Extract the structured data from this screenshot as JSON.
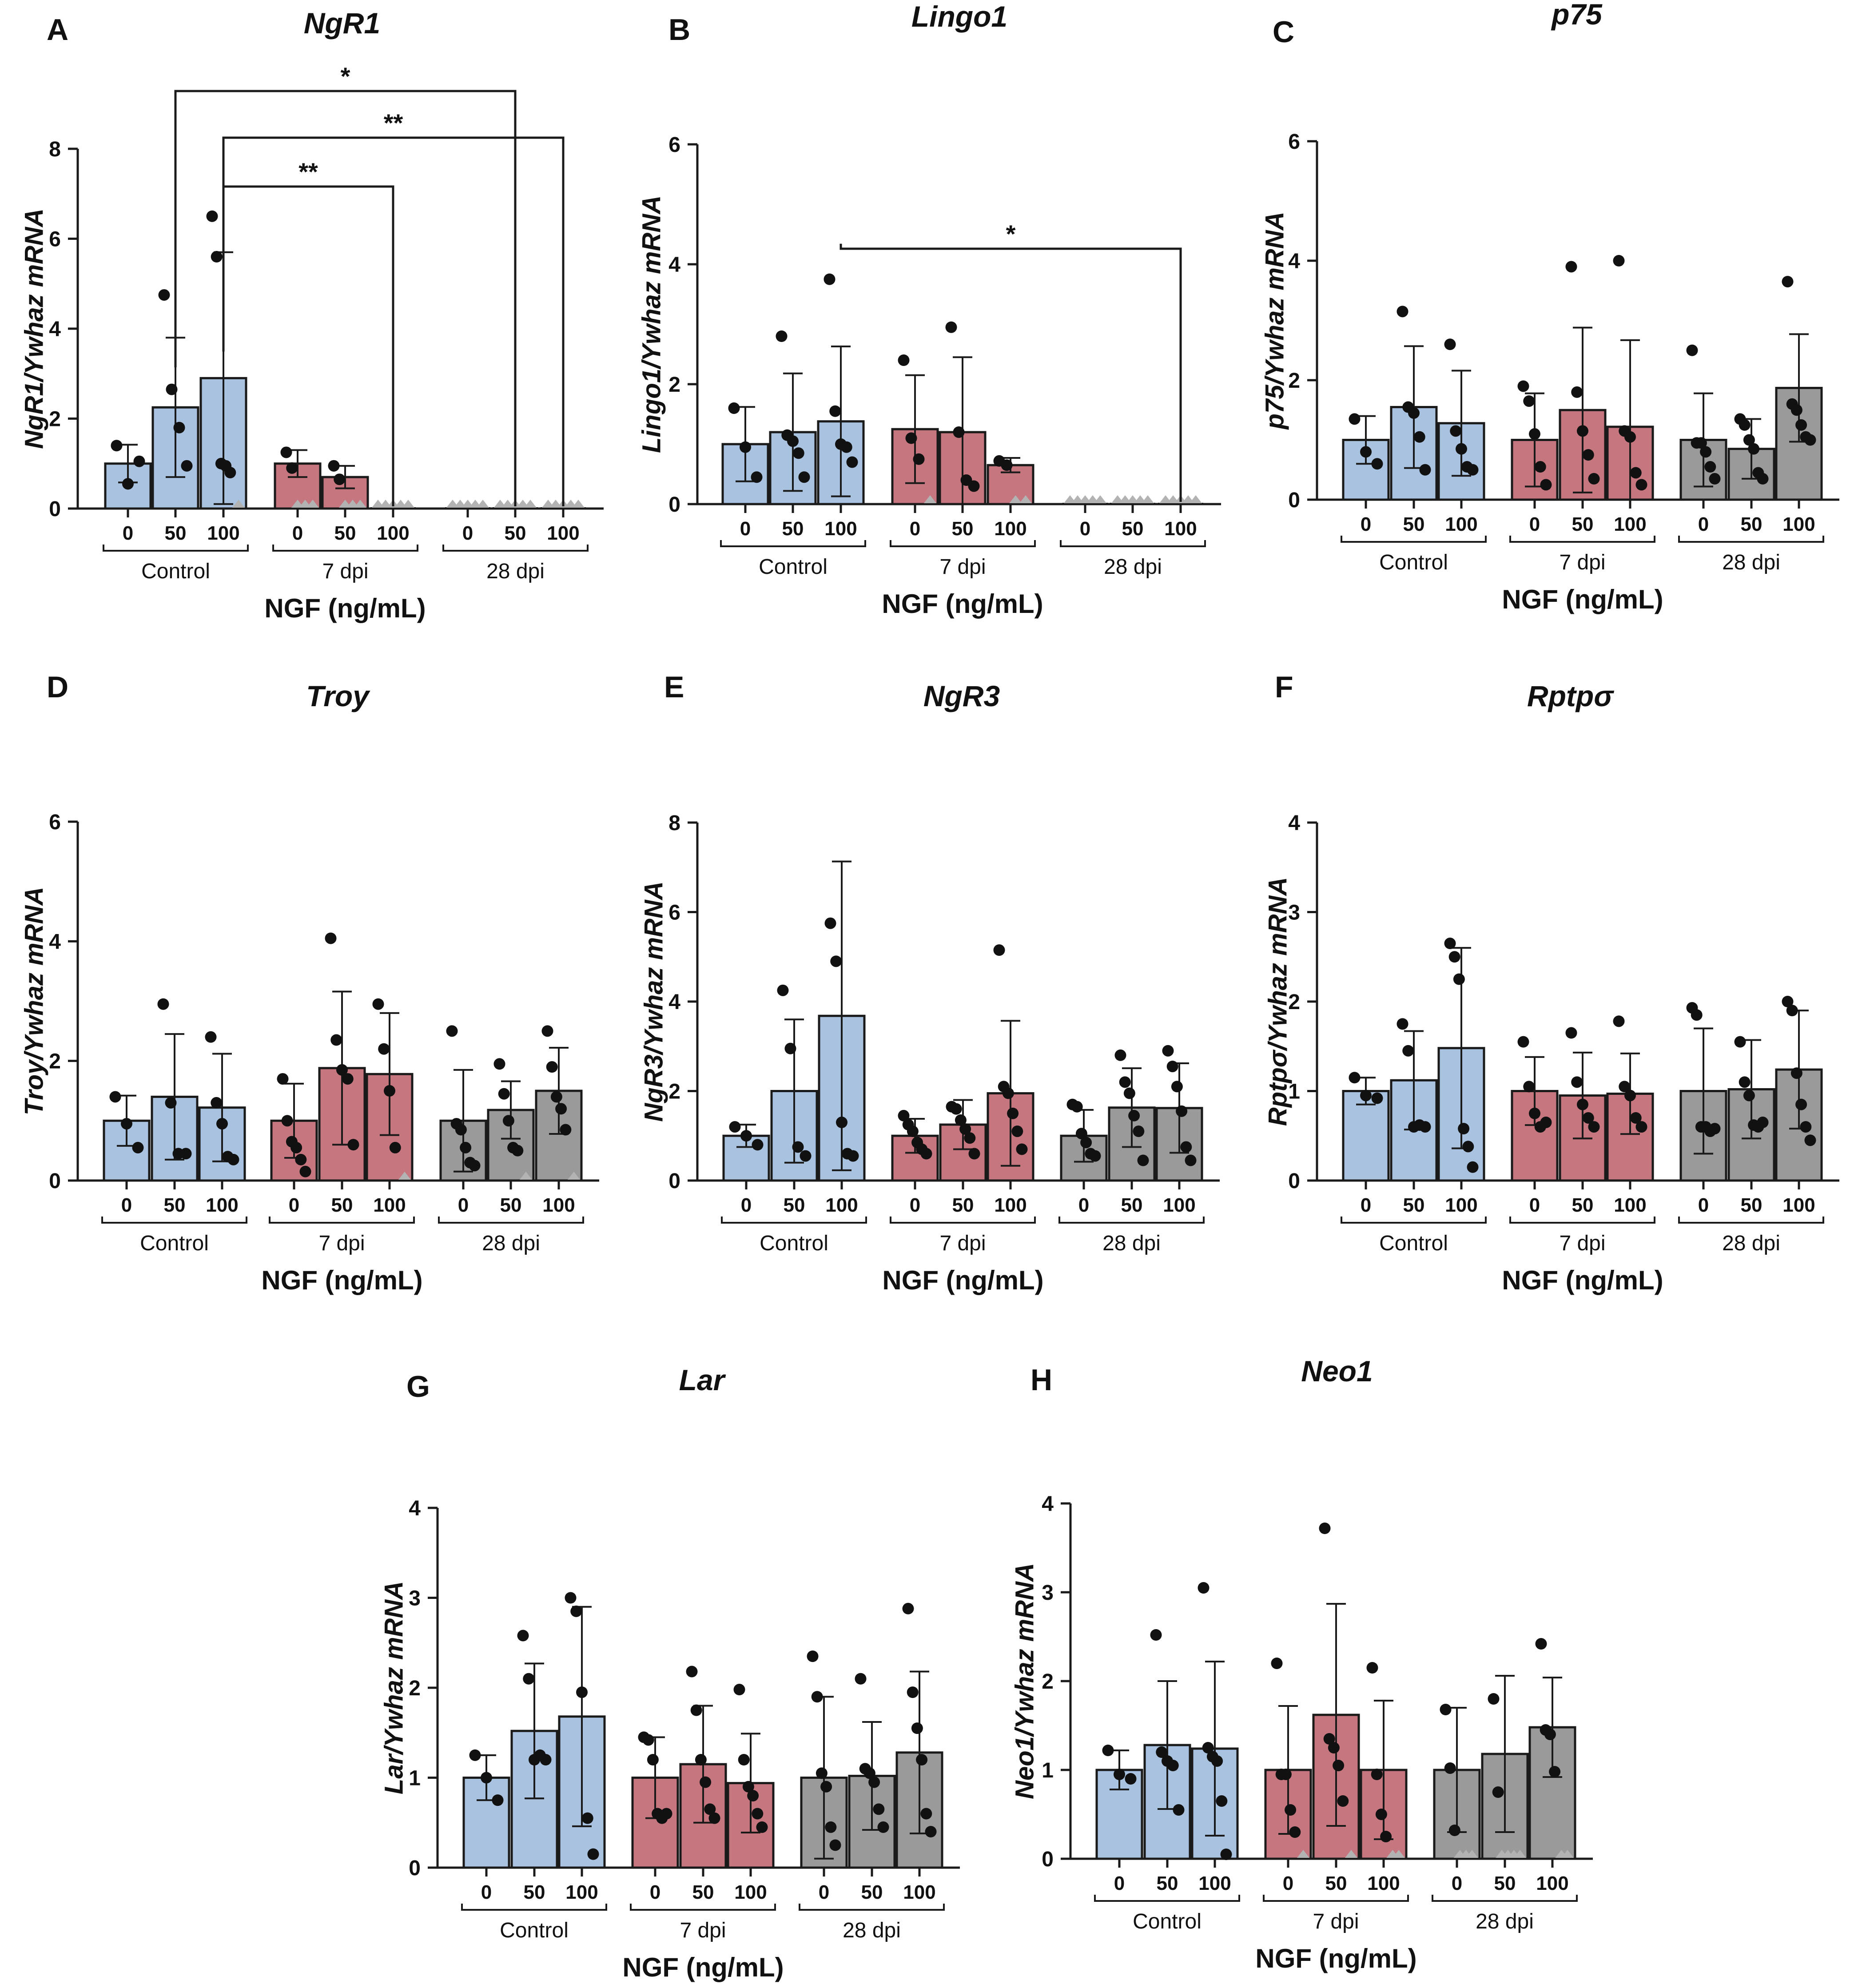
{
  "colors": {
    "Control": "#a9c2e0",
    "7 dpi": "#c6767f",
    "28 dpi": "#9a9a9a",
    "axis": "#1a1a1a",
    "point": "#111111",
    "zero_marker": "#b3b3b3"
  },
  "shared": {
    "categories": [
      "0",
      "50",
      "100"
    ],
    "groups": [
      "Control",
      "7 dpi",
      "28 dpi"
    ],
    "xlabel": "NGF (ng/mL)",
    "ylabel_suffix": "/Ywhaz mRNA"
  },
  "chart_data": [
    {
      "panel": "A",
      "gene": "NgR1",
      "type": "bar",
      "ylim": [
        0,
        8
      ],
      "yticks": [
        0,
        2,
        4,
        6,
        8
      ],
      "ylabel": "NgR1/Ywhaz mRNA",
      "xlabel": "NGF (ng/mL)",
      "series": [
        {
          "name": "Control",
          "values": [
            1.0,
            2.25,
            2.9
          ],
          "errors": [
            0.42,
            1.55,
            2.8
          ],
          "points": [
            [
              1.4,
              0.55,
              1.05
            ],
            [
              4.75,
              2.65,
              1.8,
              0.95
            ],
            [
              6.5,
              5.6,
              1.0,
              0.95,
              0.8,
              0.0
            ]
          ]
        },
        {
          "name": "7 dpi",
          "values": [
            1.0,
            0.7,
            0.0
          ],
          "errors": [
            0.3,
            0.25,
            0.0
          ],
          "points": [
            [
              1.25,
              0.9,
              0.0,
              0.0,
              0.0
            ],
            [
              0.95,
              0.65,
              0.0,
              0.0,
              0.0
            ],
            [
              0.0,
              0.0,
              0.0,
              0.0,
              0.0
            ]
          ]
        },
        {
          "name": "28 dpi",
          "values": [
            0.0,
            0.0,
            0.0
          ],
          "errors": [
            0,
            0,
            0
          ],
          "points": [
            [
              0.0,
              0.0,
              0.0,
              0.0,
              0.0
            ],
            [
              0.0,
              0.0,
              0.0,
              0.0,
              0.0
            ],
            [
              0.0,
              0.0,
              0.0,
              0.0,
              0.0
            ]
          ]
        }
      ],
      "comparisons": [
        {
          "from": [
            0,
            1
          ],
          "to": [
            2,
            1
          ],
          "label": "*",
          "level": 0
        },
        {
          "from": [
            0,
            2
          ],
          "to": [
            2,
            2
          ],
          "label": "**",
          "level": 1
        },
        {
          "from": [
            0,
            2
          ],
          "to": [
            1,
            2
          ],
          "label": "**",
          "level": 2
        }
      ]
    },
    {
      "panel": "B",
      "gene": "Lingo1",
      "type": "bar",
      "ylim": [
        0,
        6
      ],
      "yticks": [
        0,
        2,
        4,
        6
      ],
      "ylabel": "Lingo1/Ywhaz mRNA",
      "xlabel": "NGF (ng/mL)",
      "series": [
        {
          "name": "Control",
          "values": [
            1.0,
            1.2,
            1.38
          ],
          "errors": [
            0.62,
            0.98,
            1.25
          ],
          "points": [
            [
              1.6,
              0.95,
              0.45
            ],
            [
              2.8,
              1.15,
              1.05,
              0.85,
              0.45
            ],
            [
              3.75,
              1.55,
              1.0,
              0.95,
              0.7
            ]
          ]
        },
        {
          "name": "7 dpi",
          "values": [
            1.25,
            1.2,
            0.65
          ],
          "errors": [
            0.9,
            1.25,
            0.12
          ],
          "points": [
            [
              2.4,
              1.1,
              0.75,
              0.0
            ],
            [
              2.95,
              1.2,
              0.4,
              0.3
            ],
            [
              0.72,
              0.65,
              0.0,
              0.0
            ]
          ]
        },
        {
          "name": "28 dpi",
          "values": [
            0.0,
            0.0,
            0.0
          ],
          "errors": [
            0,
            0,
            0
          ],
          "points": [
            [
              0.0,
              0.0,
              0.0,
              0.0,
              0.0
            ],
            [
              0.0,
              0.0,
              0.0,
              0.0,
              0.0
            ],
            [
              0.0,
              0.0,
              0.0,
              0.0,
              0.0
            ]
          ]
        }
      ],
      "comparisons": [
        {
          "from": [
            0,
            2
          ],
          "to": [
            2,
            2
          ],
          "label": "*",
          "level": 0
        }
      ]
    },
    {
      "panel": "C",
      "gene": "p75",
      "type": "bar",
      "ylim": [
        0,
        6
      ],
      "yticks": [
        0,
        2,
        4,
        6
      ],
      "ylabel": "p75/Ywhaz mRNA",
      "xlabel": "NGF (ng/mL)",
      "series": [
        {
          "name": "Control",
          "values": [
            1.0,
            1.55,
            1.28
          ],
          "errors": [
            0.4,
            1.02,
            0.88
          ],
          "points": [
            [
              1.35,
              0.8,
              0.6
            ],
            [
              3.15,
              1.55,
              1.45,
              1.05,
              0.5
            ],
            [
              2.6,
              1.15,
              0.85,
              0.55,
              0.5
            ]
          ]
        },
        {
          "name": "7 dpi",
          "values": [
            1.0,
            1.5,
            1.22
          ],
          "errors": [
            0.78,
            1.38,
            1.45
          ],
          "points": [
            [
              1.9,
              1.65,
              1.1,
              0.55,
              0.25
            ],
            [
              3.9,
              1.8,
              1.15,
              0.75,
              0.35
            ],
            [
              4.0,
              1.15,
              1.05,
              0.45,
              0.25
            ]
          ]
        },
        {
          "name": "28 dpi",
          "values": [
            1.0,
            0.85,
            1.87
          ],
          "errors": [
            0.78,
            0.5,
            0.9
          ],
          "points": [
            [
              2.5,
              0.95,
              0.95,
              0.8,
              0.55,
              0.35
            ],
            [
              1.35,
              1.25,
              1.0,
              0.85,
              0.45,
              0.35
            ],
            [
              3.65,
              1.6,
              1.5,
              1.25,
              1.05,
              1.0
            ]
          ]
        }
      ]
    },
    {
      "panel": "D",
      "gene": "Troy",
      "type": "bar",
      "ylim": [
        0,
        6
      ],
      "yticks": [
        0,
        2,
        4,
        6
      ],
      "ylabel": "Troy/Ywhaz mRNA",
      "xlabel": "NGF (ng/mL)",
      "series": [
        {
          "name": "Control",
          "values": [
            1.0,
            1.4,
            1.22
          ],
          "errors": [
            0.42,
            1.05,
            0.9
          ],
          "points": [
            [
              1.4,
              0.95,
              0.55
            ],
            [
              2.95,
              1.3,
              0.45,
              0.45
            ],
            [
              2.4,
              1.3,
              0.95,
              0.4,
              0.35
            ]
          ]
        },
        {
          "name": "7 dpi",
          "values": [
            1.0,
            1.88,
            1.78
          ],
          "errors": [
            0.62,
            1.28,
            1.02
          ],
          "points": [
            [
              1.7,
              1.0,
              0.65,
              0.55,
              0.35,
              0.15
            ],
            [
              4.05,
              2.35,
              1.85,
              1.7,
              0.6
            ],
            [
              2.95,
              2.2,
              1.5,
              0.55,
              0.0
            ]
          ]
        },
        {
          "name": "28 dpi",
          "values": [
            1.0,
            1.18,
            1.5
          ],
          "errors": [
            0.85,
            0.48,
            0.72
          ],
          "points": [
            [
              2.5,
              0.95,
              0.85,
              0.55,
              0.3,
              0.25
            ],
            [
              1.95,
              1.45,
              1.0,
              0.55,
              0.5,
              0.0
            ],
            [
              2.5,
              1.9,
              1.4,
              1.2,
              0.85,
              0.0
            ]
          ]
        }
      ]
    },
    {
      "panel": "E",
      "gene": "NgR3",
      "type": "bar",
      "ylim": [
        0,
        8
      ],
      "yticks": [
        0,
        2,
        4,
        6,
        8
      ],
      "ylabel": "NgR3/Ywhaz mRNA",
      "xlabel": "NGF (ng/mL)",
      "series": [
        {
          "name": "Control",
          "values": [
            1.0,
            2.0,
            3.68
          ],
          "errors": [
            0.25,
            1.6,
            3.45
          ],
          "points": [
            [
              1.2,
              1.0,
              0.8
            ],
            [
              4.25,
              2.95,
              0.75,
              0.55
            ],
            [
              5.75,
              4.9,
              1.3,
              0.6,
              0.55
            ]
          ]
        },
        {
          "name": "7 dpi",
          "values": [
            1.0,
            1.25,
            1.95
          ],
          "errors": [
            0.38,
            0.55,
            1.62
          ],
          "points": [
            [
              1.45,
              1.25,
              1.1,
              0.85,
              0.7,
              0.6
            ],
            [
              1.65,
              1.6,
              1.35,
              1.15,
              0.95,
              0.6
            ],
            [
              5.15,
              2.1,
              1.95,
              1.5,
              1.1,
              0.7
            ]
          ]
        },
        {
          "name": "28 dpi",
          "values": [
            1.0,
            1.63,
            1.62
          ],
          "errors": [
            0.58,
            0.88,
            1.0
          ],
          "points": [
            [
              1.7,
              1.65,
              1.05,
              0.85,
              0.6,
              0.55
            ],
            [
              2.8,
              2.2,
              1.95,
              1.45,
              1.1,
              0.45
            ],
            [
              2.9,
              2.55,
              2.1,
              1.55,
              0.75,
              0.45
            ]
          ]
        }
      ]
    },
    {
      "panel": "F",
      "gene": "Rptpσ",
      "type": "bar",
      "ylim": [
        0,
        4
      ],
      "yticks": [
        0,
        1,
        2,
        3,
        4
      ],
      "ylabel": "Rptpσ/Ywhaz mRNA",
      "xlabel": "NGF (ng/mL)",
      "series": [
        {
          "name": "Control",
          "values": [
            1.0,
            1.12,
            1.48
          ],
          "errors": [
            0.15,
            0.55,
            1.12
          ],
          "points": [
            [
              1.15,
              0.95,
              0.92
            ],
            [
              1.75,
              1.45,
              0.6,
              0.62,
              0.6
            ],
            [
              2.65,
              2.5,
              2.25,
              0.58,
              0.38,
              0.15
            ]
          ]
        },
        {
          "name": "7 dpi",
          "values": [
            1.0,
            0.95,
            0.97
          ],
          "errors": [
            0.38,
            0.48,
            0.45
          ],
          "points": [
            [
              1.55,
              1.05,
              0.75,
              0.6,
              0.65
            ],
            [
              1.65,
              1.1,
              0.85,
              0.7,
              0.6
            ],
            [
              1.78,
              1.05,
              0.95,
              0.7,
              0.6
            ]
          ]
        },
        {
          "name": "28 dpi",
          "values": [
            1.0,
            1.02,
            1.24
          ],
          "errors": [
            0.7,
            0.55,
            0.66
          ],
          "points": [
            [
              1.93,
              1.85,
              0.6,
              0.6,
              0.55,
              0.58
            ],
            [
              1.55,
              1.1,
              0.95,
              0.62,
              0.6,
              0.65
            ],
            [
              2.0,
              1.9,
              1.2,
              0.85,
              0.6,
              0.45
            ]
          ]
        }
      ]
    },
    {
      "panel": "G",
      "gene": "Lar",
      "type": "bar",
      "ylim": [
        0,
        4
      ],
      "yticks": [
        0,
        1,
        2,
        3,
        4
      ],
      "ylabel": "Lar/Ywhaz mRNA",
      "xlabel": "NGF (ng/mL)",
      "series": [
        {
          "name": "Control",
          "values": [
            1.0,
            1.52,
            1.68
          ],
          "errors": [
            0.25,
            0.75,
            1.22
          ],
          "points": [
            [
              1.25,
              1.0,
              0.75
            ],
            [
              2.58,
              2.1,
              1.2,
              1.25,
              1.2
            ],
            [
              3.0,
              2.85,
              1.95,
              0.55,
              0.15
            ]
          ]
        },
        {
          "name": "7 dpi",
          "values": [
            1.0,
            1.15,
            0.94
          ],
          "errors": [
            0.45,
            0.65,
            0.55
          ],
          "points": [
            [
              1.45,
              1.42,
              1.2,
              0.6,
              0.55,
              0.6
            ],
            [
              2.18,
              1.75,
              1.2,
              0.95,
              0.65,
              0.55
            ],
            [
              1.98,
              1.2,
              0.9,
              0.8,
              0.6,
              0.45
            ]
          ]
        },
        {
          "name": "28 dpi",
          "values": [
            1.0,
            1.02,
            1.28
          ],
          "errors": [
            0.9,
            0.6,
            0.9
          ],
          "points": [
            [
              2.35,
              1.9,
              1.05,
              0.9,
              0.45,
              0.25
            ],
            [
              2.1,
              1.1,
              1.05,
              0.95,
              0.65,
              0.45
            ],
            [
              2.88,
              1.95,
              1.55,
              1.2,
              0.6,
              0.4
            ]
          ]
        }
      ]
    },
    {
      "panel": "H",
      "gene": "Neo1",
      "type": "bar",
      "ylim": [
        0,
        4
      ],
      "yticks": [
        0,
        1,
        2,
        3,
        4
      ],
      "ylabel": "Neo1/Ywhaz mRNA",
      "xlabel": "NGF (ng/mL)",
      "series": [
        {
          "name": "Control",
          "values": [
            1.0,
            1.28,
            1.24
          ],
          "errors": [
            0.22,
            0.72,
            0.98
          ],
          "points": [
            [
              1.22,
              0.95,
              0.9
            ],
            [
              2.52,
              1.2,
              1.1,
              1.05,
              0.55
            ],
            [
              3.05,
              1.25,
              1.15,
              1.1,
              0.65,
              0.05
            ]
          ]
        },
        {
          "name": "7 dpi",
          "values": [
            1.0,
            1.62,
            1.0
          ],
          "errors": [
            0.72,
            1.25,
            0.78
          ],
          "points": [
            [
              2.2,
              0.95,
              0.95,
              0.55,
              0.3,
              0.0
            ],
            [
              3.72,
              1.35,
              1.25,
              1.05,
              0.65,
              0.0
            ],
            [
              2.15,
              0.95,
              0.5,
              0.25,
              0.0,
              0.0
            ]
          ]
        },
        {
          "name": "28 dpi",
          "values": [
            1.0,
            1.18,
            1.48
          ],
          "errors": [
            0.7,
            0.88,
            0.56
          ],
          "points": [
            [
              1.68,
              1.02,
              0.32,
              0.0,
              0.0,
              0.0
            ],
            [
              1.8,
              0.75,
              0.0,
              0.0,
              0.0,
              0.0
            ],
            [
              2.42,
              1.45,
              1.4,
              0.98,
              0.0,
              0.0
            ]
          ]
        }
      ]
    }
  ]
}
